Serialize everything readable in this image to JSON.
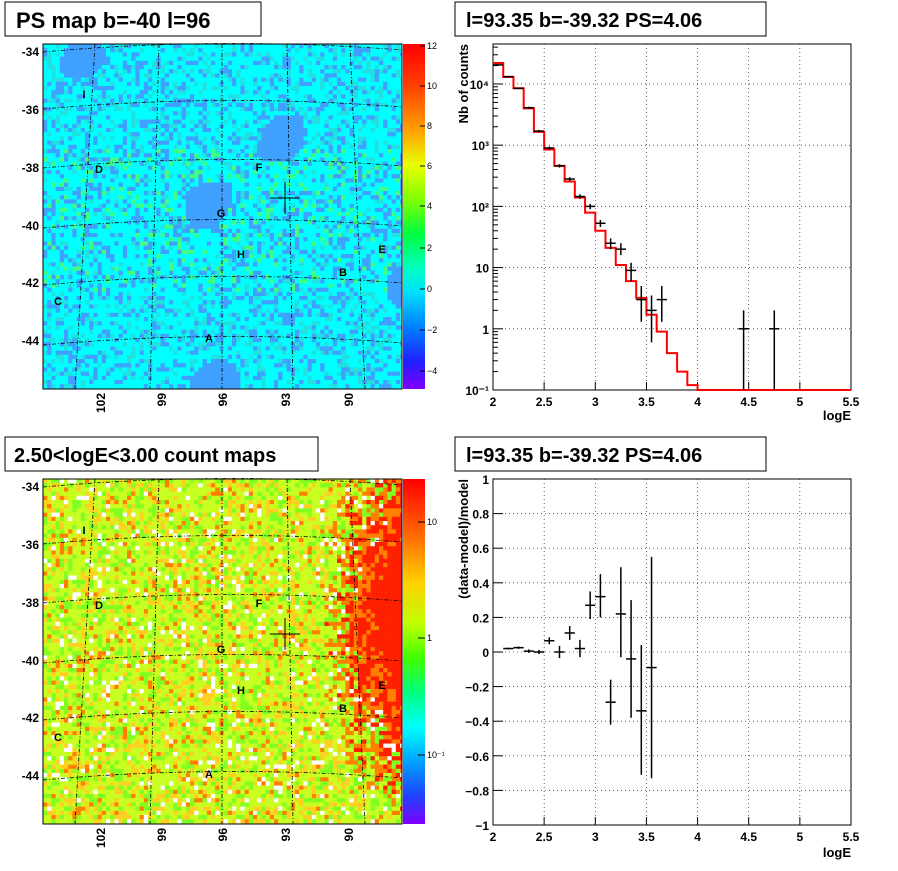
{
  "panels": {
    "top_left_title": "PS map b=-40 l=96",
    "bottom_left_title": "2.50<logE<3.00 count maps",
    "top_right_title": "l=93.35 b=-39.32 PS=4.06",
    "bottom_right_title": "l=93.35 b=-39.32 PS=4.06"
  },
  "maps": {
    "y_ticks": [
      "-34",
      "-36",
      "-38",
      "-40",
      "-42",
      "-44"
    ],
    "x_ticks": [
      "102",
      "99",
      "96",
      "93",
      "90"
    ],
    "markers": [
      "I",
      "D",
      "F",
      "G",
      "H",
      "E",
      "B",
      "C",
      "A"
    ],
    "ps_colorbar_ticks": [
      "12",
      "10",
      "8",
      "6",
      "4",
      "2",
      "0",
      "−2",
      "−4"
    ],
    "count_colorbar_ticks": [
      "10",
      "1",
      "10⁻¹"
    ],
    "ps_colors": {
      "background": "#00ffff",
      "cold": "#3fa0ff",
      "warm": "#40ff80"
    },
    "count_colors": {
      "background": "#c8ff20",
      "warm": "#ff8000",
      "hot": "#ff2000"
    }
  },
  "chart_data": [
    {
      "type": "line",
      "title": "l=93.35 b=-39.32 PS=4.06",
      "xlabel": "logE",
      "ylabel": "Nb of counts",
      "log_y": true,
      "xlim": [
        2,
        5.5
      ],
      "ylim": [
        0.1,
        45000
      ],
      "grid": true,
      "x_ticks": [
        "2",
        "2.5",
        "3",
        "3.5",
        "4",
        "4.5",
        "5",
        "5.5"
      ],
      "y_ticks": [
        "10⁻¹",
        "1",
        "10",
        "10²",
        "10³",
        "10⁴"
      ],
      "model_color": "#ff0000",
      "model_step": {
        "edges": [
          2.0,
          2.1,
          2.2,
          2.3,
          2.4,
          2.5,
          2.6,
          2.7,
          2.8,
          2.9,
          3.0,
          3.1,
          3.2,
          3.3,
          3.4,
          3.5,
          3.6,
          3.7,
          3.8,
          3.9,
          4.0,
          4.1,
          4.2,
          4.3,
          4.4,
          4.5,
          4.6,
          4.7,
          4.8,
          4.9,
          5.0,
          5.1,
          5.2,
          5.3,
          5.4,
          5.5
        ],
        "values": [
          22000,
          13000,
          8500,
          4000,
          1650,
          850,
          460,
          255,
          140,
          79,
          40,
          21,
          11,
          6,
          3.2,
          1.7,
          0.9,
          0.4,
          0.2,
          0.12,
          0.1,
          0.1,
          0.1,
          0.1,
          0.1,
          0.1,
          0.1,
          0.1,
          0.1,
          0.1,
          0.1,
          0.1,
          0.1,
          0.1,
          0.1
        ]
      },
      "data_points": [
        {
          "x": 2.05,
          "y": 20500,
          "lo": 20000,
          "hi": 21000
        },
        {
          "x": 2.15,
          "y": 13200,
          "lo": 12900,
          "hi": 13500
        },
        {
          "x": 2.25,
          "y": 8500,
          "lo": 8300,
          "hi": 8700
        },
        {
          "x": 2.35,
          "y": 4100,
          "lo": 3950,
          "hi": 4250
        },
        {
          "x": 2.45,
          "y": 1700,
          "lo": 1620,
          "hi": 1780
        },
        {
          "x": 2.55,
          "y": 900,
          "lo": 850,
          "hi": 950
        },
        {
          "x": 2.65,
          "y": 460,
          "lo": 430,
          "hi": 490
        },
        {
          "x": 2.75,
          "y": 280,
          "lo": 260,
          "hi": 300
        },
        {
          "x": 2.85,
          "y": 145,
          "lo": 133,
          "hi": 157
        },
        {
          "x": 2.95,
          "y": 100,
          "lo": 90,
          "hi": 110
        },
        {
          "x": 3.05,
          "y": 53,
          "lo": 46,
          "hi": 60
        },
        {
          "x": 3.15,
          "y": 25,
          "lo": 20,
          "hi": 30
        },
        {
          "x": 3.25,
          "y": 20,
          "lo": 16,
          "hi": 25
        },
        {
          "x": 3.35,
          "y": 9,
          "lo": 6,
          "hi": 12
        },
        {
          "x": 3.45,
          "y": 3,
          "lo": 1.3,
          "hi": 5
        },
        {
          "x": 3.55,
          "y": 2,
          "lo": 0.6,
          "hi": 3.5
        },
        {
          "x": 3.65,
          "y": 3,
          "lo": 1.3,
          "hi": 5
        },
        {
          "x": 4.45,
          "y": 1,
          "lo": 0.1,
          "hi": 2
        },
        {
          "x": 4.75,
          "y": 1,
          "lo": 0.1,
          "hi": 2
        }
      ]
    },
    {
      "type": "scatter",
      "title": "l=93.35 b=-39.32 PS=4.06",
      "xlabel": "logE",
      "ylabel": "(data-model)/model",
      "xlim": [
        2,
        5.5
      ],
      "ylim": [
        -1,
        1
      ],
      "grid": true,
      "x_ticks": [
        "2",
        "2.5",
        "3",
        "3.5",
        "4",
        "4.5",
        "5",
        "5.5"
      ],
      "y_ticks": [
        "−1",
        "−0.8",
        "−0.6",
        "−0.4",
        "−0.2",
        "0",
        "0.2",
        "0.4",
        "0.6",
        "0.8",
        "1"
      ],
      "y_tick_values": [
        -1,
        -0.8,
        -0.6,
        -0.4,
        -0.2,
        0,
        0.2,
        0.4,
        0.6,
        0.8,
        1
      ],
      "data_points": [
        {
          "x": 2.15,
          "y": 0.02,
          "lo": 0.015,
          "hi": 0.025
        },
        {
          "x": 2.25,
          "y": 0.025,
          "lo": 0.018,
          "hi": 0.032
        },
        {
          "x": 2.35,
          "y": 0.005,
          "lo": -0.005,
          "hi": 0.015
        },
        {
          "x": 2.45,
          "y": 0.0,
          "lo": -0.012,
          "hi": 0.012
        },
        {
          "x": 2.55,
          "y": 0.065,
          "lo": 0.045,
          "hi": 0.085
        },
        {
          "x": 2.65,
          "y": 0.0,
          "lo": -0.035,
          "hi": 0.035
        },
        {
          "x": 2.75,
          "y": 0.11,
          "lo": 0.07,
          "hi": 0.15
        },
        {
          "x": 2.85,
          "y": 0.02,
          "lo": -0.03,
          "hi": 0.07
        },
        {
          "x": 2.95,
          "y": 0.27,
          "lo": 0.19,
          "hi": 0.35
        },
        {
          "x": 3.05,
          "y": 0.32,
          "lo": 0.2,
          "hi": 0.45
        },
        {
          "x": 3.15,
          "y": -0.29,
          "lo": -0.42,
          "hi": -0.16
        },
        {
          "x": 3.25,
          "y": 0.22,
          "lo": -0.03,
          "hi": 0.49
        },
        {
          "x": 3.35,
          "y": -0.04,
          "lo": -0.38,
          "hi": 0.3
        },
        {
          "x": 3.45,
          "y": -0.34,
          "lo": -0.71,
          "hi": 0.04
        },
        {
          "x": 3.55,
          "y": -0.09,
          "lo": -0.73,
          "hi": 0.55
        }
      ]
    }
  ]
}
